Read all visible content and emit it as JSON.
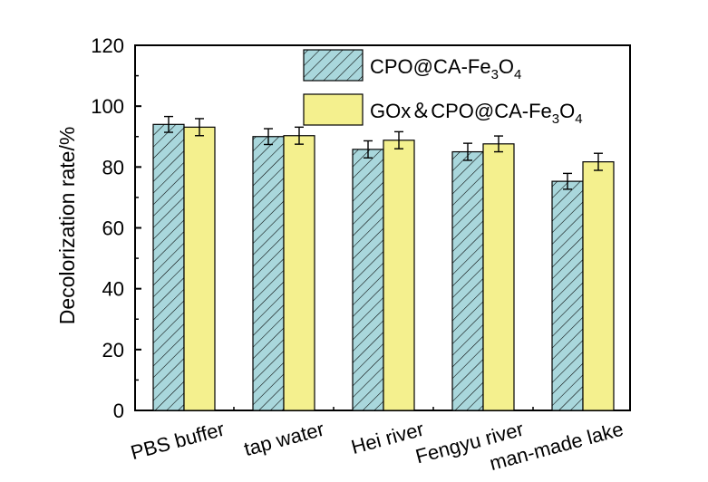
{
  "chart_data": {
    "type": "bar",
    "title": "",
    "xlabel": "",
    "ylabel": "Decolorization rate/%",
    "ylim": [
      0,
      120
    ],
    "yticks": [
      0,
      20,
      40,
      60,
      80,
      100,
      120
    ],
    "grid": false,
    "legend_position": "top-right",
    "categories": [
      "PBS buffer",
      "tap water",
      "Hei river",
      "Fengyu river",
      "man-made lake"
    ],
    "series": [
      {
        "name": "CPO@CA-Fe3O4",
        "legend_parts": [
          "CPO@CA-Fe",
          "3",
          "O",
          "4"
        ],
        "color": "#a9d7dc",
        "pattern": "hatch",
        "values": [
          94.0,
          90.0,
          85.8,
          85.0,
          75.3
        ],
        "errors": [
          2.6,
          2.6,
          2.8,
          2.8,
          2.6
        ]
      },
      {
        "name": "GOx&CPO@CA-Fe3O4",
        "legend_parts": [
          "GOx＆CPO@CA-Fe",
          "3",
          "O",
          "4"
        ],
        "color": "#f4f08e",
        "pattern": "solid",
        "values": [
          93.1,
          90.3,
          88.8,
          87.6,
          81.7
        ],
        "errors": [
          2.8,
          2.8,
          2.8,
          2.6,
          2.8
        ]
      }
    ]
  }
}
